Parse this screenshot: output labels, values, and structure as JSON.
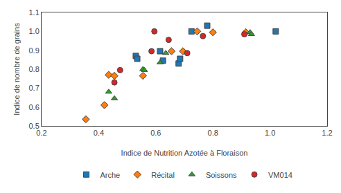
{
  "chart_data": {
    "type": "scatter",
    "x_label": "Indice de Nutrition Azotée à Floraison",
    "y_label": "Indice de nombre de grains",
    "xlim": [
      0.2,
      1.2
    ],
    "ylim": [
      0.5,
      1.1
    ],
    "xticks": [
      0.2,
      0.4,
      0.6,
      0.8,
      {
        "value": 1.0,
        "label": "1.0"
      },
      1.2
    ],
    "yticks": [
      0.5,
      0.6,
      0.7,
      0.8,
      0.9,
      {
        "value": 1.0,
        "label": "1.0"
      },
      1.1
    ],
    "grid": false,
    "legend": "bottom",
    "series": [
      {
        "name": "Arche",
        "marker": "square",
        "x": [
          0.53,
          0.535,
          0.615,
          0.625,
          0.68,
          0.685,
          0.725,
          0.78,
          1.02
        ],
        "values": [
          0.87,
          0.855,
          0.895,
          0.845,
          0.83,
          0.855,
          1.0,
          1.03,
          1.0
        ]
      },
      {
        "name": "Récital",
        "marker": "diamond",
        "x": [
          0.355,
          0.42,
          0.435,
          0.455,
          0.555,
          0.655,
          0.695,
          0.745,
          0.8,
          0.915
        ],
        "values": [
          0.535,
          0.61,
          0.77,
          0.765,
          0.765,
          0.895,
          0.895,
          1.0,
          0.995,
          0.995
        ]
      },
      {
        "name": "Soissons",
        "marker": "triangle-up",
        "x": [
          0.435,
          0.455,
          0.555,
          0.56,
          0.615,
          0.635,
          0.93,
          0.935
        ],
        "values": [
          0.68,
          0.645,
          0.8,
          0.795,
          0.835,
          0.885,
          0.995,
          0.985
        ]
      },
      {
        "name": "VM014",
        "marker": "circle",
        "x": [
          0.455,
          0.475,
          0.585,
          0.595,
          0.645,
          0.71,
          0.765,
          0.91
        ],
        "values": [
          0.73,
          0.795,
          0.895,
          1.0,
          0.955,
          0.885,
          0.975,
          0.985
        ]
      }
    ]
  }
}
